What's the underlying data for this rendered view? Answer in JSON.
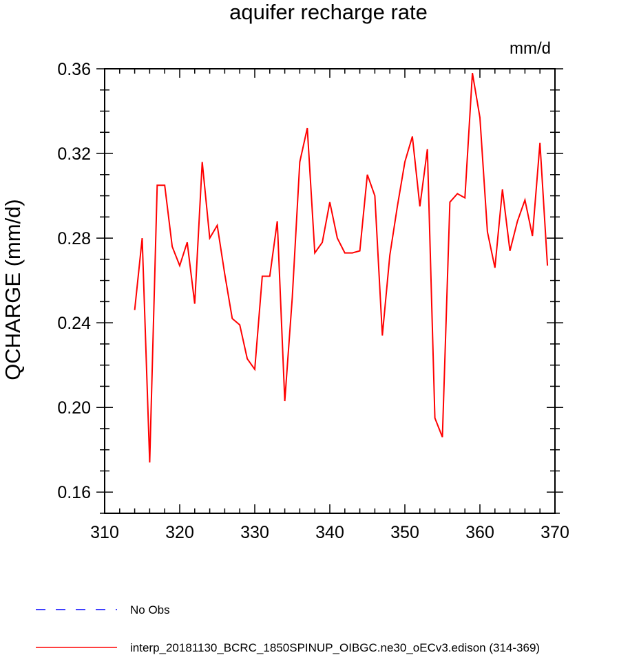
{
  "chart_data": {
    "type": "line",
    "title": "aquifer recharge rate",
    "units_label": "mm/d",
    "ylabel": "QCHARGE  (mm/d)",
    "xlabel": "",
    "xlim": [
      310,
      370
    ],
    "ylim": [
      0.15,
      0.36
    ],
    "x_ticks": [
      310,
      320,
      330,
      340,
      350,
      360,
      370
    ],
    "x_tick_labels": [
      "310",
      "320",
      "330",
      "340",
      "350",
      "360",
      "370"
    ],
    "y_ticks": [
      0.16,
      0.2,
      0.24,
      0.28,
      0.32,
      0.36
    ],
    "y_tick_labels": [
      "0.16",
      "0.20",
      "0.24",
      "0.28",
      "0.32",
      "0.36"
    ],
    "grid": false,
    "legend_position": "bottom",
    "series": [
      {
        "name": "No Obs",
        "color": "#0000ff",
        "dash": "dashed",
        "x": [],
        "y": []
      },
      {
        "name": "interp_20181130_BCRC_1850SPINUP_OIBGC.ne30_oECv3.edison (314-369)",
        "color": "#ff0000",
        "dash": "solid",
        "x": [
          314,
          315,
          316,
          317,
          318,
          319,
          320,
          321,
          322,
          323,
          324,
          325,
          326,
          327,
          328,
          329,
          330,
          331,
          332,
          333,
          334,
          335,
          336,
          337,
          338,
          339,
          340,
          341,
          342,
          343,
          344,
          345,
          346,
          347,
          348,
          349,
          350,
          351,
          352,
          353,
          354,
          355,
          356,
          357,
          358,
          359,
          360,
          361,
          362,
          363,
          364,
          365,
          366,
          367,
          368,
          369
        ],
        "y": [
          0.246,
          0.28,
          0.174,
          0.305,
          0.305,
          0.276,
          0.267,
          0.278,
          0.249,
          0.316,
          0.28,
          0.286,
          0.263,
          0.242,
          0.239,
          0.223,
          0.218,
          0.262,
          0.262,
          0.288,
          0.203,
          0.252,
          0.316,
          0.332,
          0.273,
          0.278,
          0.297,
          0.28,
          0.273,
          0.273,
          0.274,
          0.31,
          0.3,
          0.234,
          0.272,
          0.295,
          0.316,
          0.328,
          0.295,
          0.322,
          0.195,
          0.186,
          0.297,
          0.301,
          0.299,
          0.358,
          0.337,
          0.283,
          0.266,
          0.303,
          0.274,
          0.288,
          0.298,
          0.281,
          0.325,
          0.267
        ]
      }
    ]
  }
}
